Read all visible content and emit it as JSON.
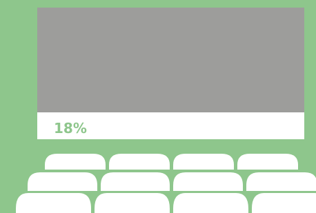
{
  "progress": {
    "label": "18%"
  }
}
